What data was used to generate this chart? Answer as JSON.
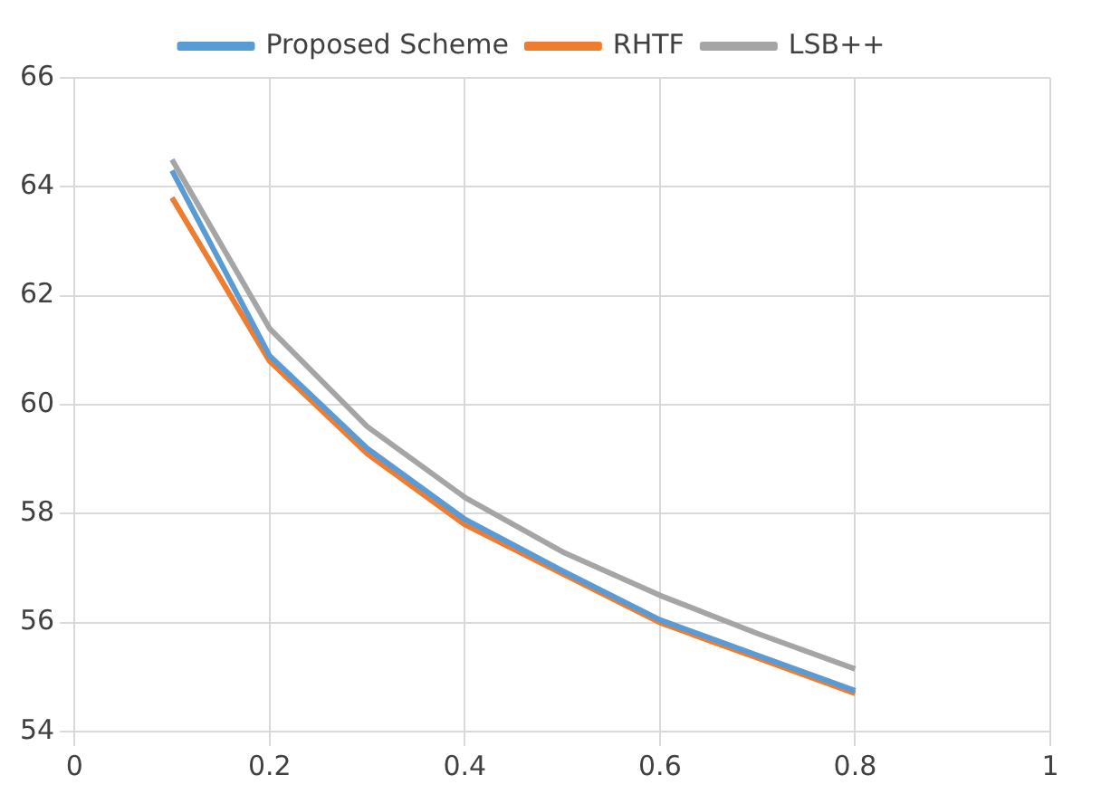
{
  "chart_data": {
    "type": "line",
    "x": [
      0.1,
      0.2,
      0.3,
      0.4,
      0.5,
      0.6,
      0.7,
      0.8
    ],
    "series": [
      {
        "name": "Proposed Scheme",
        "color": "#5b9bd5",
        "values": [
          64.3,
          60.9,
          59.2,
          57.9,
          56.95,
          56.05,
          55.4,
          54.75
        ]
      },
      {
        "name": "RHTF",
        "color": "#ed7d31",
        "values": [
          63.8,
          60.8,
          59.1,
          57.8,
          56.9,
          56.0,
          55.35,
          54.7
        ]
      },
      {
        "name": "LSB++",
        "color": "#a5a5a5",
        "values": [
          64.5,
          61.4,
          59.6,
          58.3,
          57.3,
          56.5,
          55.8,
          55.15
        ]
      }
    ],
    "xlim": [
      0,
      1
    ],
    "xticks": [
      0,
      0.2,
      0.4,
      0.6,
      0.8,
      1
    ],
    "ylim": [
      54,
      66
    ],
    "yticks": [
      54,
      56,
      58,
      60,
      62,
      64,
      66
    ],
    "grid": true,
    "legend": "top",
    "marker": "none",
    "line_style": "solid"
  }
}
